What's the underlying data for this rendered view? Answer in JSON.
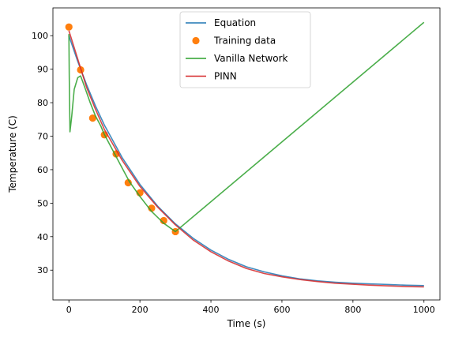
{
  "chart_data": {
    "type": "line",
    "title": "",
    "xlabel": "Time (s)",
    "ylabel": "Temperature (C)",
    "xlim": [
      -45,
      1045
    ],
    "ylim": [
      21.1,
      108.3
    ],
    "xticks": [
      0,
      200,
      400,
      600,
      800,
      1000
    ],
    "xtick_labels": [
      "0",
      "200",
      "400",
      "600",
      "800",
      "1000"
    ],
    "yticks": [
      30,
      40,
      50,
      60,
      70,
      80,
      90,
      100
    ],
    "ytick_labels": [
      "30",
      "40",
      "50",
      "60",
      "70",
      "80",
      "90",
      "100"
    ],
    "grid": false,
    "legend_position": "upper center",
    "series": [
      {
        "name": "Equation",
        "kind": "line",
        "color": "#1f77b4",
        "x": [
          0,
          25,
          50,
          75,
          100,
          150,
          200,
          250,
          300,
          350,
          400,
          450,
          500,
          550,
          600,
          650,
          700,
          750,
          800,
          850,
          900,
          950,
          1000
        ],
        "y": [
          100.0,
          92.3,
          85.3,
          79.0,
          73.3,
          63.6,
          55.6,
          49.1,
          43.8,
          39.5,
          36.0,
          33.2,
          31.0,
          29.5,
          28.3,
          27.4,
          26.8,
          26.4,
          26.1,
          25.9,
          25.7,
          25.5,
          25.4
        ]
      },
      {
        "name": "Training data",
        "kind": "scatter",
        "color": "#ff7f0e",
        "x": [
          0,
          33,
          67,
          100,
          133,
          167,
          200,
          233,
          267,
          300
        ],
        "y": [
          102.6,
          89.8,
          75.4,
          70.4,
          64.7,
          56.1,
          53.1,
          48.5,
          44.8,
          41.5
        ]
      },
      {
        "name": "Vanilla Network",
        "kind": "line",
        "color": "#2ca02c",
        "x": [
          0,
          1,
          3,
          8,
          15,
          25,
          33,
          45,
          60,
          75,
          90,
          100,
          120,
          150,
          170,
          200,
          233,
          267,
          300,
          1000
        ],
        "y": [
          100.5,
          88.0,
          71.3,
          76.0,
          84.0,
          87.5,
          88.0,
          84.5,
          80.0,
          76.0,
          73.0,
          70.5,
          66.5,
          60.5,
          56.5,
          52.0,
          47.5,
          44.0,
          41.5,
          104.0
        ]
      },
      {
        "name": "PINN",
        "kind": "line",
        "color": "#d62728",
        "x": [
          0,
          25,
          50,
          75,
          100,
          150,
          200,
          250,
          300,
          350,
          400,
          450,
          500,
          550,
          600,
          650,
          700,
          750,
          800,
          850,
          900,
          950,
          1000
        ],
        "y": [
          101.5,
          93.0,
          84.5,
          78.0,
          72.0,
          62.8,
          55.0,
          48.8,
          43.5,
          39.0,
          35.5,
          32.7,
          30.5,
          29.0,
          28.0,
          27.2,
          26.6,
          26.1,
          25.8,
          25.5,
          25.3,
          25.1,
          25.0
        ]
      }
    ]
  }
}
